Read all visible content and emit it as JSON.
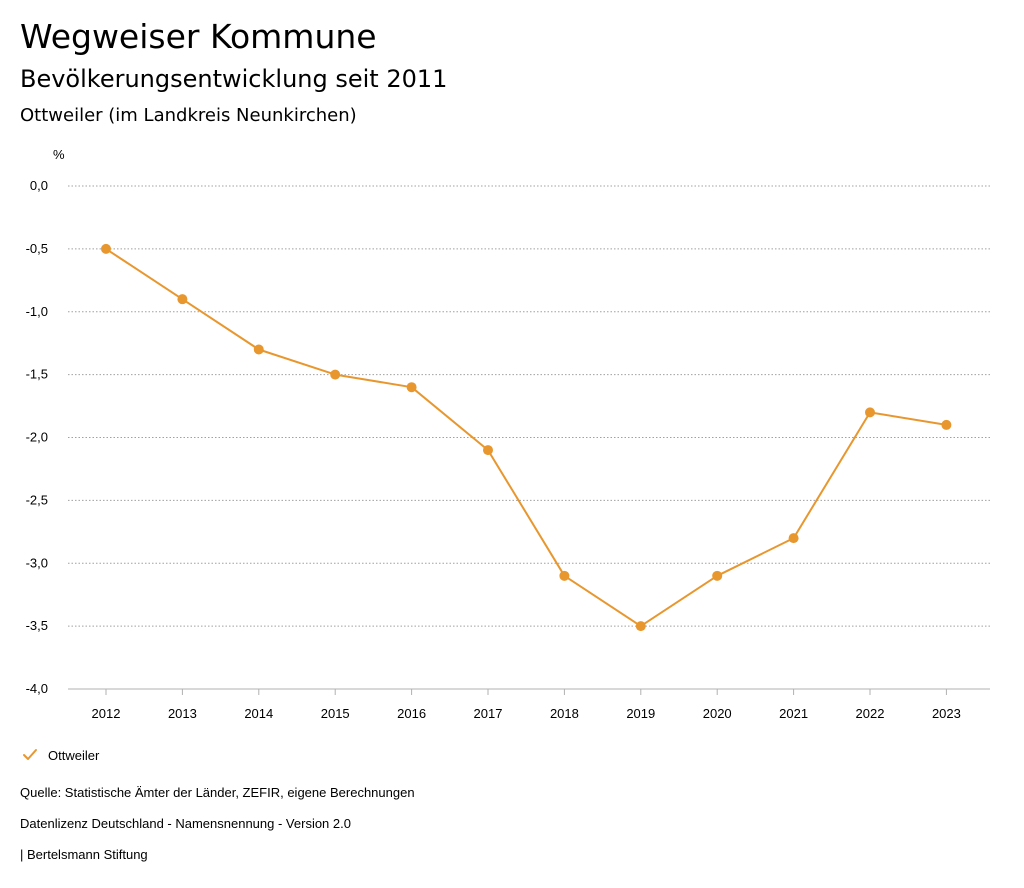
{
  "header": {
    "title": "Wegweiser Kommune",
    "subtitle": "Bevölkerungsentwicklung seit 2011",
    "chart_subtitle": "Ottweiler (im Landkreis Neunkirchen)"
  },
  "colors": {
    "series": "#e8972e",
    "grid": "#a0a0a0",
    "axis": "#b0b0b0"
  },
  "chart_data": {
    "type": "line",
    "y_unit": "%",
    "x": [
      "2012",
      "2013",
      "2014",
      "2015",
      "2016",
      "2017",
      "2018",
      "2019",
      "2020",
      "2021",
      "2022",
      "2023"
    ],
    "series": [
      {
        "name": "Ottweiler",
        "values": [
          -0.5,
          -0.9,
          -1.3,
          -1.5,
          -1.6,
          -2.1,
          -3.1,
          -3.5,
          -3.1,
          -2.8,
          -1.8,
          -1.9
        ]
      }
    ],
    "ylim": [
      -4.0,
      0.0
    ],
    "y_ticks": [
      "0,0",
      "-0,5",
      "-1,0",
      "-1,5",
      "-2,0",
      "-2,5",
      "-3,0",
      "-3,5",
      "-4,0"
    ],
    "grid": true,
    "legend_position": "bottom-left"
  },
  "legend": {
    "icon": "check-icon",
    "label": "Ottweiler"
  },
  "footer": {
    "source": "Quelle: Statistische Ämter der Länder, ZEFIR, eigene Berechnungen",
    "license": "Datenlizenz Deutschland - Namensnennung - Version 2.0",
    "publisher": "| Bertelsmann Stiftung"
  }
}
